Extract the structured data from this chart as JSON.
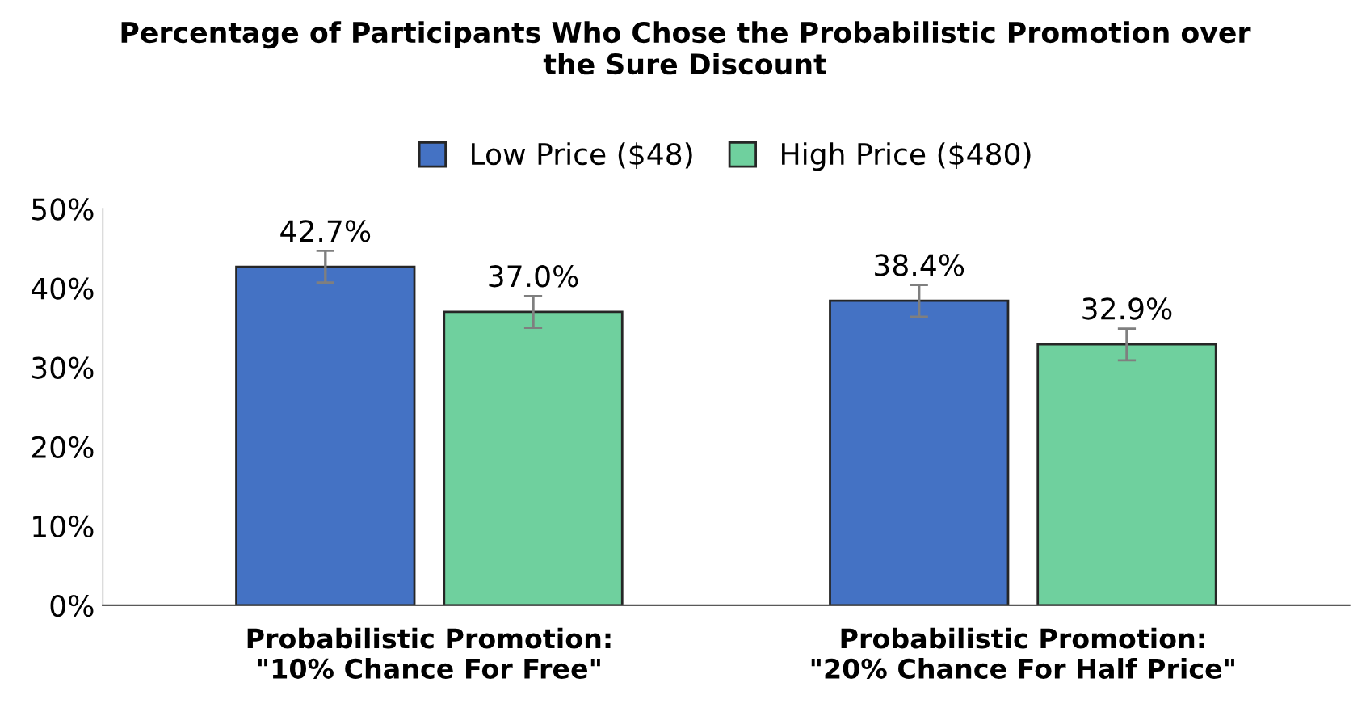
{
  "chart_data": {
    "type": "bar",
    "title": "Percentage of Participants Who Chose the Probabilistic Promotion over\nthe Sure Discount",
    "categories": [
      "Probabilistic Promotion:\n\"10% Chance For Free\"",
      "Probabilistic Promotion:\n\"20% Chance For Half Price\""
    ],
    "series": [
      {
        "name": "Low Price ($48)",
        "color": "#4472c4",
        "values": [
          42.7,
          38.4
        ],
        "errors": [
          2.0,
          2.0
        ],
        "value_labels": [
          "42.7%",
          "38.4%"
        ]
      },
      {
        "name": "High Price ($480)",
        "color": "#6fd09e",
        "values": [
          37.0,
          32.9
        ],
        "errors": [
          2.0,
          2.0
        ],
        "value_labels": [
          "37.0%",
          "32.9%"
        ]
      }
    ],
    "ylim": [
      0,
      50
    ],
    "yticks": [
      {
        "value": 0,
        "label": "0%"
      },
      {
        "value": 10,
        "label": "10%"
      },
      {
        "value": 20,
        "label": "20%"
      },
      {
        "value": 30,
        "label": "30%"
      },
      {
        "value": 40,
        "label": "40%"
      },
      {
        "value": 50,
        "label": "50%"
      }
    ],
    "legend": "top",
    "grid": false
  }
}
